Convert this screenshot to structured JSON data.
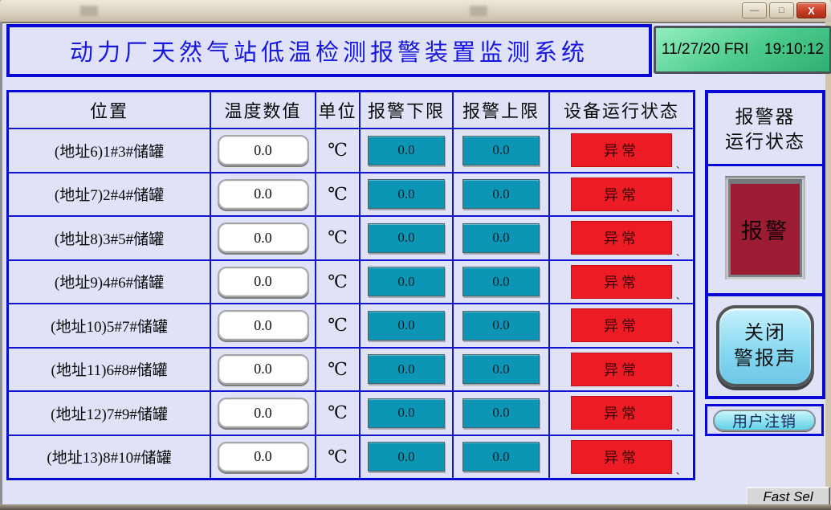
{
  "window": {
    "controls": {
      "minimize_glyph": "—",
      "maximize_glyph": "□",
      "close_glyph": "X"
    }
  },
  "header": {
    "title": "动力厂天然气站低温检测报警装置监测系统",
    "date_text": "11/27/20 FRI",
    "time_text": "19:10:12"
  },
  "table": {
    "columns": [
      "位置",
      "温度数值",
      "单位",
      "报警下限",
      "报警上限",
      "设备运行状态"
    ],
    "row_artifact": "、",
    "rows": [
      {
        "location": "(地址6)1#3#储罐",
        "value": "0.0",
        "unit": "℃",
        "low": "0.0",
        "high": "0.0",
        "status": "异常"
      },
      {
        "location": "(地址7)2#4#储罐",
        "value": "0.0",
        "unit": "℃",
        "low": "0.0",
        "high": "0.0",
        "status": "异常"
      },
      {
        "location": "(地址8)3#5#储罐",
        "value": "0.0",
        "unit": "℃",
        "low": "0.0",
        "high": "0.0",
        "status": "异常"
      },
      {
        "location": "(地址9)4#6#储罐",
        "value": "0.0",
        "unit": "℃",
        "low": "0.0",
        "high": "0.0",
        "status": "异常"
      },
      {
        "location": "(地址10)5#7#储罐",
        "value": "0.0",
        "unit": "℃",
        "low": "0.0",
        "high": "0.0",
        "status": "异常"
      },
      {
        "location": "(地址11)6#8#储罐",
        "value": "0.0",
        "unit": "℃",
        "low": "0.0",
        "high": "0.0",
        "status": "异常"
      },
      {
        "location": "(地址12)7#9#储罐",
        "value": "0.0",
        "unit": "℃",
        "low": "0.0",
        "high": "0.0",
        "status": "异常"
      },
      {
        "location": "(地址13)8#10#储罐",
        "value": "0.0",
        "unit": "℃",
        "low": "0.0",
        "high": "0.0",
        "status": "异常"
      }
    ]
  },
  "alarm_panel": {
    "title_line1": "报警器",
    "title_line2": "运行状态",
    "indicator_label": "报警",
    "mute_line1": "关闭",
    "mute_line2": "警报声",
    "logout_label": "用户注销"
  },
  "footer": {
    "fast_sel_label": "Fast Sel"
  },
  "colors": {
    "border_blue": "#0909d6",
    "title_blue": "#1717e0",
    "panel_bg": "#e0e2f8",
    "limit_teal": "#0d95b5",
    "status_red": "#ed1c24",
    "alarm_dark_red": "#9c1c33",
    "datetime_green": "#4bcb8b",
    "button_cyan": "#84d7f0"
  }
}
